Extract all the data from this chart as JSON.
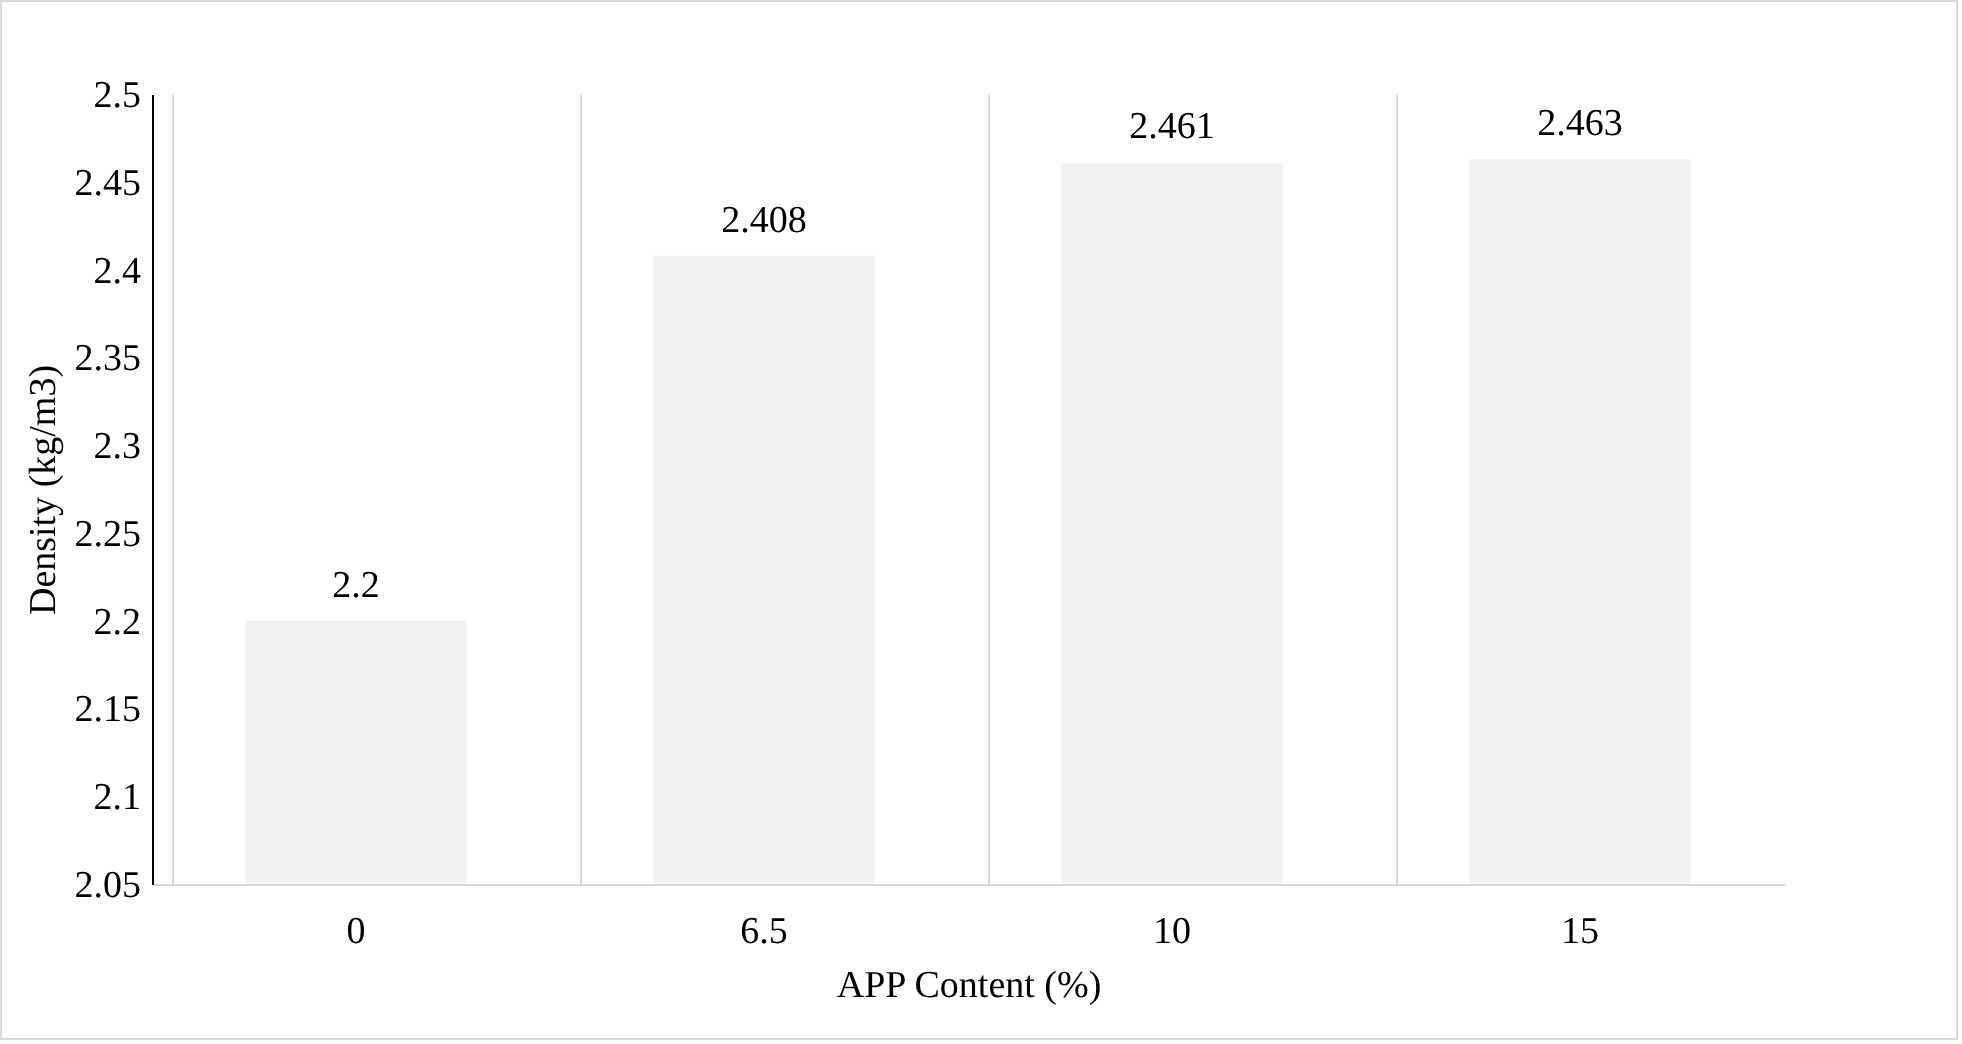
{
  "chart_data": {
    "type": "bar",
    "xlabel": "APP Content (%)",
    "ylabel": "Density (kg/m3)",
    "categories": [
      "0",
      "6.5",
      "10",
      "15"
    ],
    "values": [
      2.2,
      2.408,
      2.461,
      2.463
    ],
    "color": "#f2f2f2",
    "ylim": [
      2.05,
      2.5
    ],
    "yticks": [
      2.05,
      2.1,
      2.15,
      2.2,
      2.25,
      2.3,
      2.35,
      2.4,
      2.45,
      2.5
    ],
    "grid": "x",
    "data_labels": true
  }
}
